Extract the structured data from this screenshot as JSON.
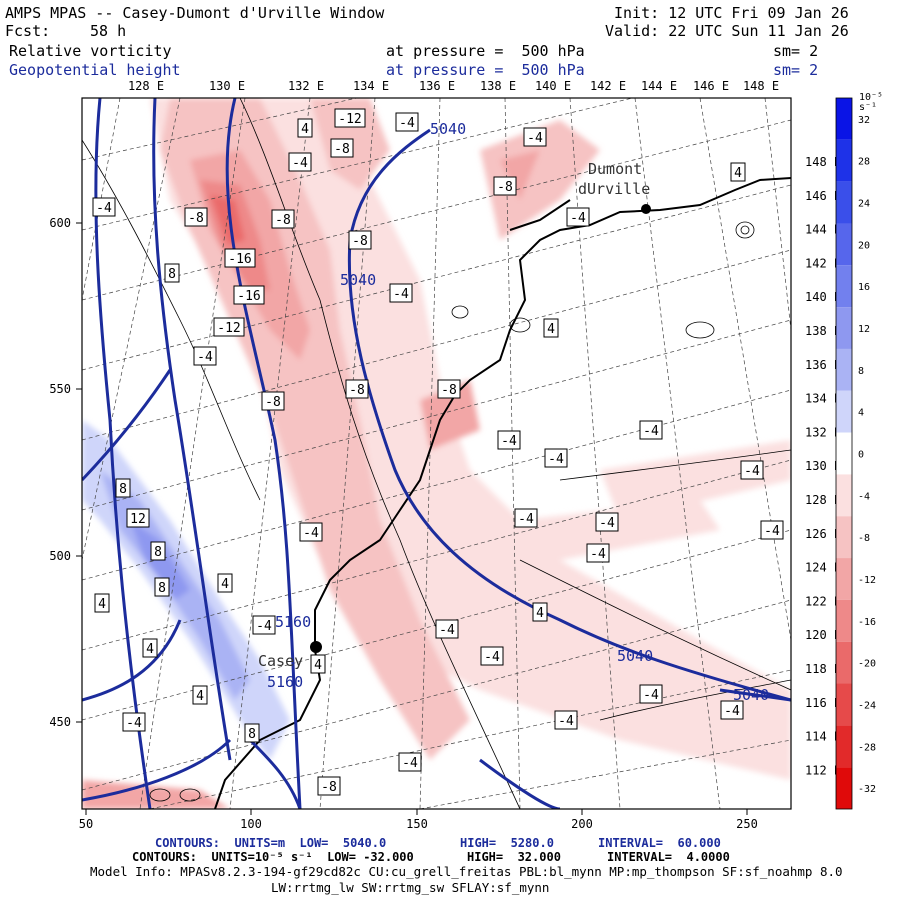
{
  "header": {
    "title": "AMPS MPAS -- Casey-Dumont d'Urville Window",
    "fcst_label": "Fcst:",
    "fcst_value": "58 h",
    "init": "Init: 12 UTC Fri 09 Jan 26",
    "valid": "Valid: 22 UTC Sun 11 Jan 26",
    "field1_name": "Relative vorticity",
    "field1_level": "at pressure =  500 hPa",
    "field1_sm": "sm= 2",
    "field2_name": "Geopotential height",
    "field2_level": "at pressure =  500 hPa",
    "field2_sm": "sm= 2"
  },
  "map": {
    "lon_top_labels": [
      "128 E",
      "130 E",
      "132 E",
      "134 E",
      "136 E",
      "138 E",
      "140 E",
      "142 E",
      "144 E",
      "146 E",
      "148 E"
    ],
    "lat_right_labels": [
      "148 E",
      "146 E",
      "144 E",
      "142 E",
      "140 E",
      "138 E",
      "136 E",
      "134 E",
      "132 E",
      "130 E",
      "128 E",
      "126 E",
      "124 E",
      "122 E",
      "120 E",
      "118 E",
      "116 E",
      "114 E",
      "112 E"
    ],
    "x_ticks": [
      "50",
      "100",
      "150",
      "200",
      "250"
    ],
    "y_ticks": [
      "600",
      "550",
      "500",
      "450"
    ],
    "stations": [
      {
        "name_line1": "Dumont",
        "name_line2": "dUrville"
      },
      {
        "name_line1": "Casey",
        "name_line2": ""
      }
    ],
    "geopotential_labels": [
      "5040",
      "5040",
      "5040",
      "5040",
      "5160",
      "5160"
    ],
    "vorticity_labels": [
      "-12",
      "-8",
      "-8",
      "-16",
      "-16",
      "-12",
      "-8",
      "-8",
      "-4",
      "-4",
      "-8",
      "-8",
      "-4",
      "4",
      "4",
      "-4",
      "-8",
      "-4",
      "-4",
      "-4",
      "-4",
      "-4",
      "-4",
      "-4",
      "-4",
      "-4",
      "-4",
      "-4",
      "-4",
      "-4",
      "-4",
      "-4",
      "-4",
      "-4",
      "-8",
      "8",
      "8",
      "12",
      "8",
      "8",
      "4",
      "4",
      "4",
      "-4",
      "4",
      "4",
      "8",
      "-8",
      "4",
      "-4",
      "-4",
      "4"
    ]
  },
  "colorbar": {
    "unit_label": "10⁻⁵ s⁻¹",
    "labels": [
      "32",
      "28",
      "24",
      "20",
      "16",
      "12",
      "8",
      "4",
      "0",
      "-4",
      "-8",
      "-12",
      "-16",
      "-20",
      "-24",
      "-28",
      "-32"
    ],
    "colors": [
      "#0a14e6",
      "#1e32e8",
      "#3a4fea",
      "#5666ec",
      "#7280ee",
      "#8e98f0",
      "#aab3f4",
      "#cfd5fa",
      "#ffffff",
      "#fbe0e0",
      "#f6c3c3",
      "#f2a6a6",
      "#ee8989",
      "#ea6a6a",
      "#e64a4a",
      "#e22a2a",
      "#e00a0a"
    ]
  },
  "footer": {
    "line1_part1": "CONTOURS:  UNITS=m  LOW=  5040.0",
    "line1_part2": "HIGH=  5280.0",
    "line1_part3": "INTERVAL=  60.000",
    "line2_part1": "CONTOURS:  UNITS=10⁻⁵ s⁻¹  LOW= -32.000",
    "line2_part2": "HIGH=  32.000",
    "line2_part3": "INTERVAL=  4.0000",
    "model_line1": "Model Info: MPASv8.2.3-194-gf29cd82c CU:cu_grell_freitas PBL:bl_mynn MP:mp_thompson SF:sf_noahmp 8.0",
    "model_line2": "LW:rrtmg_lw SW:rrtmg_sw SFLAY:sf_mynn"
  }
}
